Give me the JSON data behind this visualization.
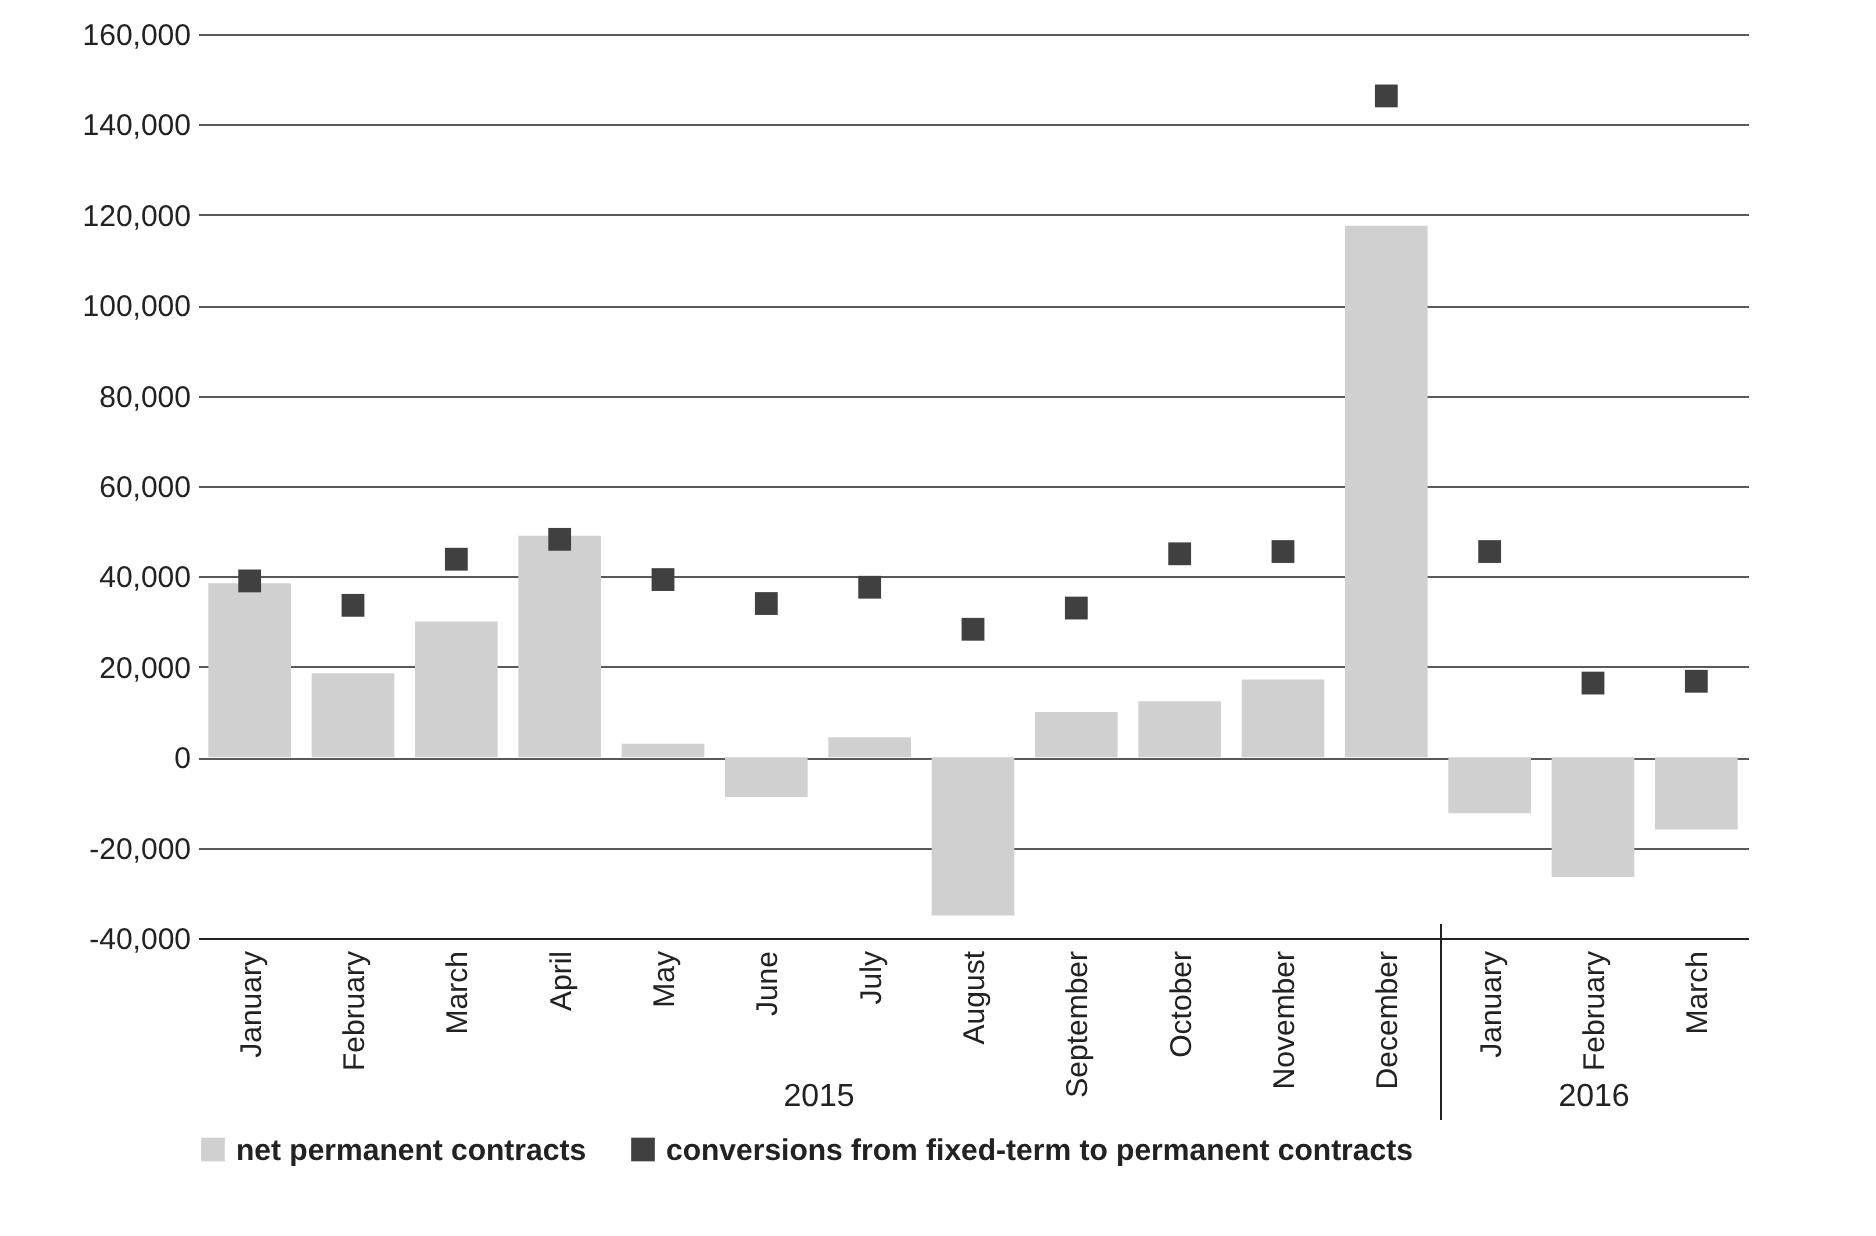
{
  "chart_data": {
    "type": "bar",
    "categories": [
      "January",
      "February",
      "March",
      "April",
      "May",
      "June",
      "July",
      "August",
      "September",
      "October",
      "November",
      "December",
      "January",
      "February",
      "March"
    ],
    "series": [
      {
        "name": "net permanent contracts",
        "color": "#d0d0d0",
        "values": [
          38500,
          18600,
          30000,
          49000,
          3000,
          -8800,
          4400,
          -35000,
          10000,
          12400,
          17200,
          117600,
          -12400,
          -26500,
          -16000
        ]
      },
      {
        "name": "conversions from fixed-term to permanent contracts",
        "type": "scatter",
        "color": "#404040",
        "values": [
          39000,
          33600,
          43800,
          48200,
          39300,
          34000,
          37600,
          28300,
          33000,
          45000,
          45500,
          146300,
          45500,
          16400,
          16800
        ]
      }
    ],
    "ylim": [
      -40000,
      160000
    ],
    "yticks": [
      {
        "value": -40000,
        "label": "-40,000"
      },
      {
        "value": -20000,
        "label": "-20,000"
      },
      0,
      {
        "value": 20000,
        "label": "20,000"
      },
      {
        "value": 40000,
        "label": "40,000"
      },
      {
        "value": 60000,
        "label": "60,000"
      },
      {
        "value": 80000,
        "label": "80,000"
      },
      {
        "value": 100000,
        "label": "100,000"
      },
      {
        "value": 120000,
        "label": "120,000"
      },
      {
        "value": 140000,
        "label": "140,000"
      },
      {
        "value": 160000,
        "label": "160,000"
      }
    ],
    "annotations": [
      "2015",
      "2016"
    ],
    "grid": "y",
    "legend": "bottom",
    "marker": "square"
  }
}
